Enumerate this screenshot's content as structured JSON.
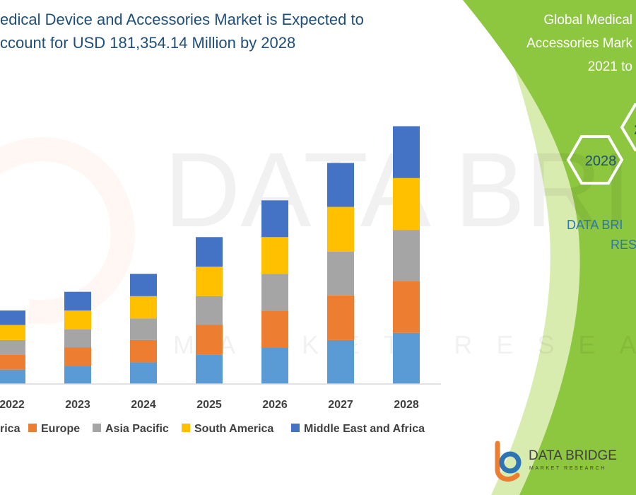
{
  "title_lines": [
    "edical Device and Accessories Market is Expected to",
    "ccount for USD 181,354.14 Million by 2028"
  ],
  "side_panel": {
    "title_lines": [
      "Global Medical",
      "Accessories Mark",
      "2021 to"
    ],
    "hex_year": "2028",
    "hex_partial": "2",
    "brand_lines": [
      "DATA BRI",
      "RES"
    ]
  },
  "logo": {
    "name": "DATA BRIDGE",
    "tagline": "MARKET RESEARCH"
  },
  "watermark": {
    "main": "DATA BRIDGE",
    "sub": "MARKET RESEARCH"
  },
  "colors": {
    "title": "#1f4e79",
    "green_panel": "#8dc63f",
    "light_green": "#d9ecb0",
    "north_america": "#5b9bd5",
    "europe": "#ed7d31",
    "asia_pacific": "#a5a5a5",
    "south_america": "#ffc000",
    "middle_east_africa": "#4472c4"
  },
  "chart_data": {
    "type": "bar",
    "stacked": true,
    "categories": [
      "2022",
      "2023",
      "2024",
      "2025",
      "2026",
      "2027",
      "2028"
    ],
    "series": [
      {
        "name": "rica",
        "color": "#5b9bd5",
        "values": [
          20,
          25,
          30,
          41,
          51,
          61,
          71
        ]
      },
      {
        "name": "Europe",
        "color": "#ed7d31",
        "values": [
          21,
          26,
          31,
          41,
          51,
          62,
          72
        ]
      },
      {
        "name": "Asia Pacific",
        "color": "#a5a5a5",
        "values": [
          20,
          25,
          30,
          40,
          51,
          61,
          71
        ]
      },
      {
        "name": "South America",
        "color": "#ffc000",
        "values": [
          21,
          26,
          31,
          41,
          51,
          62,
          72
        ]
      },
      {
        "name": "Middle East and Africa",
        "color": "#4472c4",
        "values": [
          20,
          26,
          31,
          41,
          51,
          61,
          72
        ]
      }
    ],
    "ylim": [
      0,
      360
    ],
    "grid": false,
    "legend_position": "bottom"
  }
}
